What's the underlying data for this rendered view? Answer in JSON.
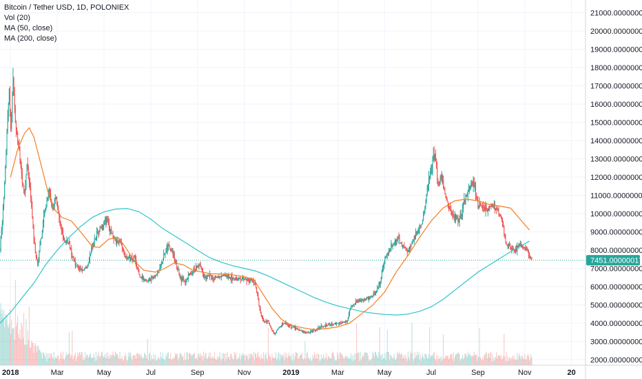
{
  "legend": {
    "title": "Bitcoin / Tether USD, 1D, POLONIEX",
    "vol": "Vol (20)",
    "ma50": "MA (50, close)",
    "ma200": "MA (200, close)"
  },
  "colors": {
    "up": "#26a69a",
    "down": "#ef5350",
    "ma50": "#f57c1f",
    "ma200": "#2ec4c9",
    "price_label_bg": "#26a69a",
    "grid": "#f0f3fa",
    "axis": "#d1d4dc"
  },
  "chart_data": {
    "type": "candlestick",
    "y_ticks": [
      "21000.00000000",
      "20000.00000000",
      "19000.00000000",
      "18000.00000000",
      "17000.00000000",
      "16000.00000000",
      "15000.00000000",
      "14000.00000000",
      "13000.00000000",
      "12000.00000000",
      "11000.00000000",
      "10000.00000000",
      "9000.00000000",
      "8000.00000000",
      "7000.00000000",
      "6000.00000000",
      "5000.00000000",
      "4000.00000000",
      "3000.00000000",
      "2000.00000000"
    ],
    "ylim": [
      1700,
      21700
    ],
    "x_ticks": [
      {
        "label": "2018",
        "month": 0,
        "bold": true
      },
      {
        "label": "Mar",
        "month": 2
      },
      {
        "label": "May",
        "month": 4
      },
      {
        "label": "Jul",
        "month": 6
      },
      {
        "label": "Sep",
        "month": 8
      },
      {
        "label": "Nov",
        "month": 10
      },
      {
        "label": "2019",
        "month": 12,
        "bold": true
      },
      {
        "label": "Mar",
        "month": 14
      },
      {
        "label": "May",
        "month": 16
      },
      {
        "label": "Jul",
        "month": 18
      },
      {
        "label": "Sep",
        "month": 20
      },
      {
        "label": "Nov",
        "month": 22
      },
      {
        "label": "20",
        "month": 24,
        "bold": true
      }
    ],
    "xlim_months": [
      -0.45,
      24.6
    ],
    "current_price": "7451.00000017",
    "current_price_value": 7451,
    "price_path": [
      {
        "m": -0.45,
        "p": 8000
      },
      {
        "m": -0.3,
        "p": 10500
      },
      {
        "m": -0.15,
        "p": 14500
      },
      {
        "m": -0.05,
        "p": 17000
      },
      {
        "m": 0.0,
        "p": 14000
      },
      {
        "m": 0.1,
        "p": 17500
      },
      {
        "m": 0.2,
        "p": 15000
      },
      {
        "m": 0.35,
        "p": 13500
      },
      {
        "m": 0.5,
        "p": 12000
      },
      {
        "m": 0.6,
        "p": 11000
      },
      {
        "m": 0.7,
        "p": 12800
      },
      {
        "m": 0.85,
        "p": 11000
      },
      {
        "m": 0.95,
        "p": 9500
      },
      {
        "m": 1.05,
        "p": 8000
      },
      {
        "m": 1.15,
        "p": 7200
      },
      {
        "m": 1.3,
        "p": 8500
      },
      {
        "m": 1.5,
        "p": 10500
      },
      {
        "m": 1.65,
        "p": 11200
      },
      {
        "m": 1.8,
        "p": 10200
      },
      {
        "m": 1.95,
        "p": 11000
      },
      {
        "m": 2.1,
        "p": 9400
      },
      {
        "m": 2.3,
        "p": 8500
      },
      {
        "m": 2.5,
        "p": 8300
      },
      {
        "m": 2.7,
        "p": 7500
      },
      {
        "m": 2.9,
        "p": 7000
      },
      {
        "m": 3.1,
        "p": 6900
      },
      {
        "m": 3.3,
        "p": 7200
      },
      {
        "m": 3.5,
        "p": 8200
      },
      {
        "m": 3.7,
        "p": 9000
      },
      {
        "m": 3.9,
        "p": 9300
      },
      {
        "m": 4.1,
        "p": 9800
      },
      {
        "m": 4.3,
        "p": 9000
      },
      {
        "m": 4.5,
        "p": 8400
      },
      {
        "m": 4.7,
        "p": 8500
      },
      {
        "m": 4.9,
        "p": 7600
      },
      {
        "m": 5.1,
        "p": 7500
      },
      {
        "m": 5.3,
        "p": 7700
      },
      {
        "m": 5.5,
        "p": 6600
      },
      {
        "m": 5.7,
        "p": 6400
      },
      {
        "m": 5.9,
        "p": 6300
      },
      {
        "m": 6.1,
        "p": 6500
      },
      {
        "m": 6.3,
        "p": 6700
      },
      {
        "m": 6.5,
        "p": 7400
      },
      {
        "m": 6.7,
        "p": 8200
      },
      {
        "m": 6.9,
        "p": 8000
      },
      {
        "m": 7.1,
        "p": 7200
      },
      {
        "m": 7.3,
        "p": 6400
      },
      {
        "m": 7.5,
        "p": 6300
      },
      {
        "m": 7.7,
        "p": 6700
      },
      {
        "m": 7.9,
        "p": 7000
      },
      {
        "m": 8.1,
        "p": 7200
      },
      {
        "m": 8.3,
        "p": 6500
      },
      {
        "m": 8.5,
        "p": 6600
      },
      {
        "m": 8.7,
        "p": 6500
      },
      {
        "m": 9.0,
        "p": 6600
      },
      {
        "m": 9.3,
        "p": 6500
      },
      {
        "m": 9.6,
        "p": 6450
      },
      {
        "m": 9.9,
        "p": 6400
      },
      {
        "m": 10.2,
        "p": 6350
      },
      {
        "m": 10.45,
        "p": 6300
      },
      {
        "m": 10.55,
        "p": 5600
      },
      {
        "m": 10.7,
        "p": 4500
      },
      {
        "m": 10.85,
        "p": 4000
      },
      {
        "m": 11.0,
        "p": 4200
      },
      {
        "m": 11.15,
        "p": 3700
      },
      {
        "m": 11.3,
        "p": 3400
      },
      {
        "m": 11.5,
        "p": 3800
      },
      {
        "m": 11.7,
        "p": 4000
      },
      {
        "m": 11.9,
        "p": 3900
      },
      {
        "m": 12.1,
        "p": 3800
      },
      {
        "m": 12.4,
        "p": 3600
      },
      {
        "m": 12.7,
        "p": 3500
      },
      {
        "m": 13.0,
        "p": 3600
      },
      {
        "m": 13.3,
        "p": 3800
      },
      {
        "m": 13.6,
        "p": 3900
      },
      {
        "m": 13.9,
        "p": 4000
      },
      {
        "m": 14.2,
        "p": 4050
      },
      {
        "m": 14.4,
        "p": 4100
      },
      {
        "m": 14.55,
        "p": 4900
      },
      {
        "m": 14.8,
        "p": 5200
      },
      {
        "m": 15.1,
        "p": 5300
      },
      {
        "m": 15.4,
        "p": 5400
      },
      {
        "m": 15.6,
        "p": 5600
      },
      {
        "m": 15.8,
        "p": 6200
      },
      {
        "m": 16.0,
        "p": 7500
      },
      {
        "m": 16.2,
        "p": 8000
      },
      {
        "m": 16.4,
        "p": 8400
      },
      {
        "m": 16.6,
        "p": 8500
      },
      {
        "m": 16.8,
        "p": 8200
      },
      {
        "m": 17.0,
        "p": 7900
      },
      {
        "m": 17.2,
        "p": 8500
      },
      {
        "m": 17.4,
        "p": 9000
      },
      {
        "m": 17.6,
        "p": 9500
      },
      {
        "m": 17.8,
        "p": 11000
      },
      {
        "m": 18.0,
        "p": 12500
      },
      {
        "m": 18.15,
        "p": 13200
      },
      {
        "m": 18.3,
        "p": 11500
      },
      {
        "m": 18.45,
        "p": 12000
      },
      {
        "m": 18.6,
        "p": 11000
      },
      {
        "m": 18.8,
        "p": 10200
      },
      {
        "m": 19.0,
        "p": 9800
      },
      {
        "m": 19.2,
        "p": 9700
      },
      {
        "m": 19.4,
        "p": 10500
      },
      {
        "m": 19.6,
        "p": 11400
      },
      {
        "m": 19.8,
        "p": 11800
      },
      {
        "m": 20.0,
        "p": 10500
      },
      {
        "m": 20.2,
        "p": 10400
      },
      {
        "m": 20.4,
        "p": 10200
      },
      {
        "m": 20.6,
        "p": 10500
      },
      {
        "m": 20.8,
        "p": 10200
      },
      {
        "m": 21.0,
        "p": 9800
      },
      {
        "m": 21.2,
        "p": 8300
      },
      {
        "m": 21.4,
        "p": 8100
      },
      {
        "m": 21.6,
        "p": 8000
      },
      {
        "m": 21.8,
        "p": 8300
      },
      {
        "m": 22.0,
        "p": 8200
      },
      {
        "m": 22.15,
        "p": 7900
      },
      {
        "m": 22.3,
        "p": 7451
      }
    ],
    "ma50": [
      {
        "m": 0.0,
        "p": 12000
      },
      {
        "m": 0.3,
        "p": 13500
      },
      {
        "m": 0.6,
        "p": 14400
      },
      {
        "m": 0.8,
        "p": 14700
      },
      {
        "m": 1.0,
        "p": 14200
      },
      {
        "m": 1.3,
        "p": 12700
      },
      {
        "m": 1.6,
        "p": 11200
      },
      {
        "m": 1.9,
        "p": 10200
      },
      {
        "m": 2.2,
        "p": 9800
      },
      {
        "m": 2.6,
        "p": 9600
      },
      {
        "m": 3.0,
        "p": 9000
      },
      {
        "m": 3.5,
        "p": 8200
      },
      {
        "m": 3.8,
        "p": 8150
      },
      {
        "m": 4.2,
        "p": 8600
      },
      {
        "m": 4.6,
        "p": 8700
      },
      {
        "m": 4.9,
        "p": 8200
      },
      {
        "m": 5.3,
        "p": 7400
      },
      {
        "m": 5.7,
        "p": 6900
      },
      {
        "m": 6.2,
        "p": 6800
      },
      {
        "m": 6.6,
        "p": 7000
      },
      {
        "m": 7.0,
        "p": 7300
      },
      {
        "m": 7.4,
        "p": 7200
      },
      {
        "m": 7.8,
        "p": 6900
      },
      {
        "m": 8.2,
        "p": 6800
      },
      {
        "m": 8.6,
        "p": 6700
      },
      {
        "m": 9.0,
        "p": 6700
      },
      {
        "m": 9.5,
        "p": 6650
      },
      {
        "m": 10.0,
        "p": 6550
      },
      {
        "m": 10.4,
        "p": 6400
      },
      {
        "m": 10.8,
        "p": 5600
      },
      {
        "m": 11.2,
        "p": 4800
      },
      {
        "m": 11.6,
        "p": 4200
      },
      {
        "m": 12.0,
        "p": 3900
      },
      {
        "m": 12.5,
        "p": 3750
      },
      {
        "m": 13.0,
        "p": 3650
      },
      {
        "m": 13.5,
        "p": 3700
      },
      {
        "m": 14.0,
        "p": 3800
      },
      {
        "m": 14.5,
        "p": 4000
      },
      {
        "m": 15.0,
        "p": 4500
      },
      {
        "m": 15.5,
        "p": 5000
      },
      {
        "m": 16.0,
        "p": 5700
      },
      {
        "m": 16.5,
        "p": 6800
      },
      {
        "m": 17.0,
        "p": 7700
      },
      {
        "m": 17.5,
        "p": 8700
      },
      {
        "m": 18.0,
        "p": 9600
      },
      {
        "m": 18.5,
        "p": 10300
      },
      {
        "m": 19.0,
        "p": 10700
      },
      {
        "m": 19.5,
        "p": 10800
      },
      {
        "m": 20.0,
        "p": 10700
      },
      {
        "m": 20.5,
        "p": 10500
      },
      {
        "m": 21.0,
        "p": 10400
      },
      {
        "m": 21.4,
        "p": 10300
      },
      {
        "m": 21.8,
        "p": 9700
      },
      {
        "m": 22.2,
        "p": 9100
      }
    ],
    "ma200": [
      {
        "m": -0.45,
        "p": 4000
      },
      {
        "m": 0.0,
        "p": 4600
      },
      {
        "m": 0.5,
        "p": 5400
      },
      {
        "m": 1.0,
        "p": 6200
      },
      {
        "m": 1.5,
        "p": 7200
      },
      {
        "m": 2.0,
        "p": 8000
      },
      {
        "m": 2.5,
        "p": 8700
      },
      {
        "m": 3.0,
        "p": 9300
      },
      {
        "m": 3.5,
        "p": 9800
      },
      {
        "m": 4.0,
        "p": 10100
      },
      {
        "m": 4.5,
        "p": 10250
      },
      {
        "m": 5.0,
        "p": 10280
      },
      {
        "m": 5.5,
        "p": 10100
      },
      {
        "m": 6.0,
        "p": 9700
      },
      {
        "m": 6.5,
        "p": 9200
      },
      {
        "m": 7.0,
        "p": 8800
      },
      {
        "m": 7.5,
        "p": 8400
      },
      {
        "m": 8.0,
        "p": 8000
      },
      {
        "m": 8.5,
        "p": 7600
      },
      {
        "m": 9.0,
        "p": 7350
      },
      {
        "m": 9.5,
        "p": 7150
      },
      {
        "m": 10.0,
        "p": 7000
      },
      {
        "m": 10.5,
        "p": 6850
      },
      {
        "m": 11.0,
        "p": 6600
      },
      {
        "m": 11.5,
        "p": 6300
      },
      {
        "m": 12.0,
        "p": 6000
      },
      {
        "m": 12.5,
        "p": 5700
      },
      {
        "m": 13.0,
        "p": 5400
      },
      {
        "m": 13.5,
        "p": 5150
      },
      {
        "m": 14.0,
        "p": 4950
      },
      {
        "m": 14.5,
        "p": 4800
      },
      {
        "m": 15.0,
        "p": 4650
      },
      {
        "m": 15.5,
        "p": 4550
      },
      {
        "m": 16.0,
        "p": 4480
      },
      {
        "m": 16.5,
        "p": 4450
      },
      {
        "m": 17.0,
        "p": 4500
      },
      {
        "m": 17.5,
        "p": 4650
      },
      {
        "m": 18.0,
        "p": 4900
      },
      {
        "m": 18.5,
        "p": 5300
      },
      {
        "m": 19.0,
        "p": 5800
      },
      {
        "m": 19.5,
        "p": 6300
      },
      {
        "m": 20.0,
        "p": 6800
      },
      {
        "m": 20.5,
        "p": 7200
      },
      {
        "m": 21.0,
        "p": 7600
      },
      {
        "m": 21.5,
        "p": 8000
      },
      {
        "m": 22.0,
        "p": 8350
      },
      {
        "m": 22.2,
        "p": 8500
      }
    ]
  }
}
